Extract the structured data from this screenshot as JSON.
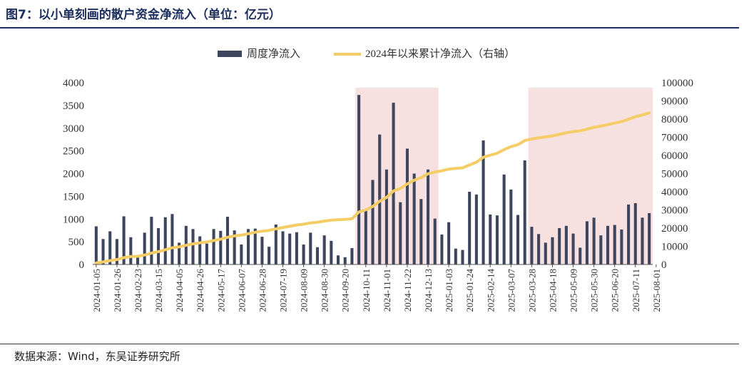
{
  "header": {
    "title": "图7：以小单刻画的散户资金净流入（单位：亿元）"
  },
  "footer": {
    "source": "数据来源：Wind，东吴证券研究所"
  },
  "colors": {
    "bar": "#3d465e",
    "line": "#f5cd66",
    "shade": "#f6e0e0",
    "axis": "#555555",
    "title": "#1d2f5e"
  },
  "chart_data": {
    "type": "bar+line",
    "x_ticks": [
      "2024-01-05",
      "2024-01-26",
      "2024-02-23",
      "2024-03-15",
      "2024-04-05",
      "2024-04-26",
      "2024-05-17",
      "2024-06-07",
      "2024-06-28",
      "2024-07-19",
      "2024-08-09",
      "2024-08-30",
      "2024-09-20",
      "2024-10-11",
      "2024-11-01",
      "2024-11-22",
      "2024-12-13",
      "2025-01-03",
      "2025-01-24",
      "2025-02-14",
      "2025-03-07",
      "2025-03-28",
      "2025-04-18",
      "2025-05-09",
      "2025-05-30",
      "2025-06-20",
      "2025-07-11",
      "2025-08-01"
    ],
    "y_left": {
      "ticks": [
        "0",
        "500",
        "1000",
        "1500",
        "2000",
        "2500",
        "3000",
        "3500",
        "4000"
      ],
      "min": 0,
      "max": 4000
    },
    "y_right": {
      "ticks": [
        "0",
        "10000",
        "20000",
        "30000",
        "40000",
        "50000",
        "60000",
        "70000",
        "80000",
        "90000",
        "100000"
      ],
      "min": 0,
      "max": 100000
    },
    "series": [
      {
        "name": "周度净流入",
        "kind": "bar",
        "axis": "left",
        "values": [
          840,
          560,
          730,
          560,
          1060,
          600,
          160,
          700,
          1050,
          800,
          1040,
          1110,
          480,
          850,
          780,
          620,
          460,
          780,
          740,
          1050,
          750,
          440,
          780,
          790,
          610,
          390,
          880,
          730,
          680,
          710,
          440,
          700,
          380,
          640,
          520,
          200,
          160,
          360,
          3730,
          1190,
          1860,
          2860,
          2090,
          3560,
          1370,
          2550,
          2000,
          1440,
          2090,
          1010,
          660,
          930,
          350,
          320,
          1600,
          1540,
          2730,
          1100,
          1080,
          1980,
          1650,
          1090,
          2290,
          830,
          670,
          480,
          600,
          800,
          850,
          680,
          370,
          950,
          1030,
          640,
          850,
          870,
          770,
          1320,
          1350,
          1030,
          1130
        ]
      },
      {
        "name": "2024年以来累计净流入（右轴）",
        "kind": "line",
        "axis": "right",
        "values": [
          840,
          1400,
          2130,
          2690,
          3750,
          4350,
          4510,
          5210,
          6260,
          7060,
          8100,
          9210,
          9690,
          10540,
          11320,
          11940,
          12400,
          13180,
          13920,
          14970,
          15720,
          16160,
          16940,
          17730,
          18340,
          18730,
          19610,
          20340,
          21020,
          21730,
          22170,
          22870,
          23250,
          23890,
          24410,
          24610,
          24770,
          25130,
          28860,
          30050,
          31910,
          34770,
          36860,
          40420,
          41790,
          44340,
          46340,
          47780,
          49870,
          50880,
          51540,
          52470,
          52820,
          53140,
          54740,
          56280,
          59010,
          60110,
          61190,
          63170,
          64820,
          65910,
          68200,
          69030,
          69700,
          70180,
          70780,
          71580,
          72430,
          73110,
          73480,
          74430,
          75460,
          76100,
          76950,
          77820,
          78590,
          79910,
          81260,
          82290,
          83420
        ]
      }
    ],
    "shaded_ranges": [
      {
        "from_week": 38,
        "to_week": 49
      },
      {
        "from_week": 63,
        "to_week": 80
      }
    ],
    "legend": {
      "placement": "top-center"
    }
  }
}
